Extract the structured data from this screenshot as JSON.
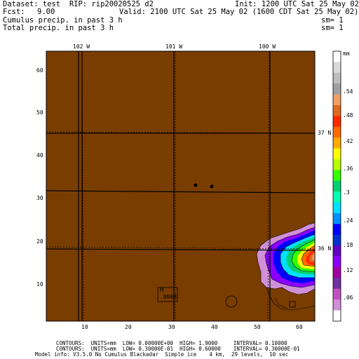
{
  "header": {
    "dataset_line": "Dataset: test  RIP: rip20020525 d2",
    "init_line": "Init: 1200 UTC Sat 25 May 02",
    "fcst_label": "Fcst:",
    "fcst_value": "9.00",
    "valid_line": "Valid: 2100 UTC Sat 25 May 02 (1600 CDT Sat 25 May 02)",
    "field1": "Cumulus precip. in past 3 h",
    "field1_sm": "sm= 1",
    "field2": "Total precip. in past 3 h",
    "field2_sm": "sm= 1"
  },
  "map": {
    "background_color": "#7a3d00",
    "grid_color": "#000000",
    "lon_labels": [
      "102 W",
      "101 W",
      "100 W"
    ],
    "lat_labels": [
      "37 N",
      "36 N"
    ],
    "y_ticks": [
      "60",
      "50",
      "40",
      "30",
      "20",
      "10"
    ],
    "x_ticks": [
      "10",
      "20",
      "30",
      "40",
      "50",
      "60"
    ],
    "high_marker": {
      "letter": "H",
      "value": ".0008"
    }
  },
  "colorbar": {
    "unit": "mm",
    "labels": [
      ".54",
      ".48",
      ".42",
      ".36",
      ".3",
      ".24",
      ".18",
      ".12",
      ".06"
    ],
    "colors": [
      "#ffffff",
      "#d8d8d8",
      "#bdbdbd",
      "#a0a0a0",
      "#f0a060",
      "#e06a20",
      "#ff2a00",
      "#ff6a00",
      "#ffaa00",
      "#ffff00",
      "#b8ff00",
      "#33ff00",
      "#00d070",
      "#00ffb0",
      "#00e0ff",
      "#0090ff",
      "#0000ff",
      "#0030d0",
      "#6000c0",
      "#8a00ff",
      "#a000a0",
      "#7030a0",
      "#c050c0",
      "#d090d8",
      "#ffffff"
    ]
  },
  "footer": {
    "line1": "CONTOURS:  UNITS=mm  LOW= 0.00000E+00  HIGH= 1.9000     INTERVAL= 0.10000",
    "line2": "CONTOURS:  UNITS=mm  LOW= 0.30000E-01  HIGH= 0.60000    INTERVAL= 0.30000E-01",
    "line3": "Model info: V3.5.0 No Cumulus Blackadar  Simple ice    4 km,  29 levels,  10 sec"
  }
}
